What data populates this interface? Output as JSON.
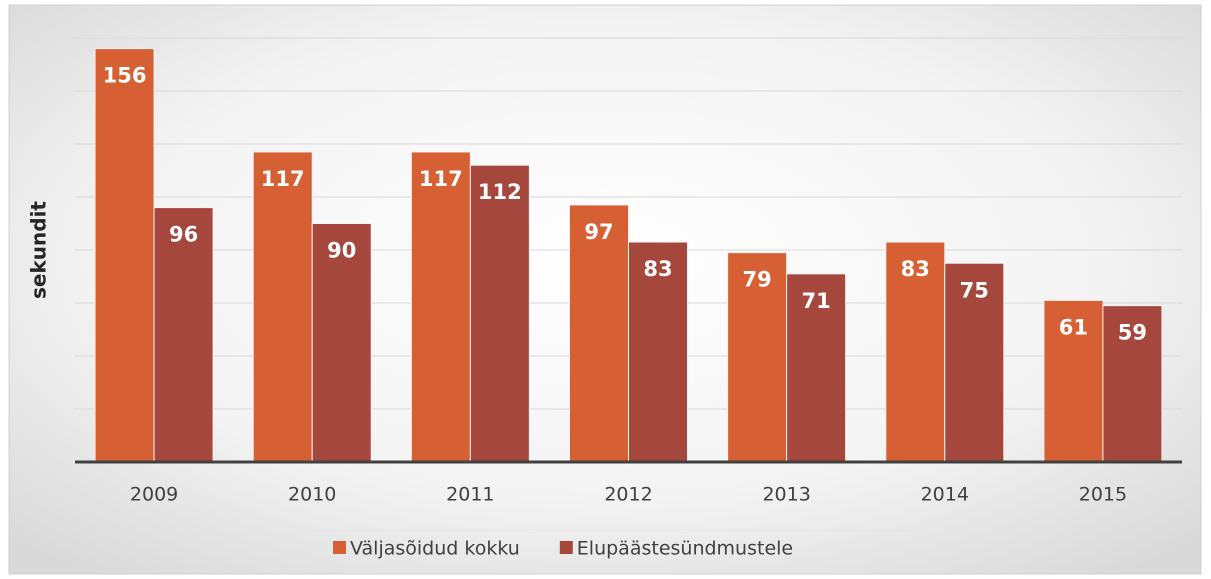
{
  "chart_data": {
    "type": "bar",
    "y_label": "sekundit",
    "categories": [
      "2009",
      "2010",
      "2011",
      "2012",
      "2013",
      "2014",
      "2015"
    ],
    "series": [
      {
        "name": "Väljasõidud kokku",
        "color": "#d65f33",
        "values": [
          156,
          117,
          117,
          97,
          79,
          83,
          61
        ]
      },
      {
        "name": "Elupäästesündmustele",
        "color": "#a5473d",
        "values": [
          96,
          90,
          112,
          83,
          71,
          75,
          59
        ]
      }
    ],
    "ylim": [
      0,
      160
    ],
    "yticks": [
      0,
      20,
      40,
      60,
      80,
      100,
      120,
      140,
      160
    ],
    "grid": true
  }
}
